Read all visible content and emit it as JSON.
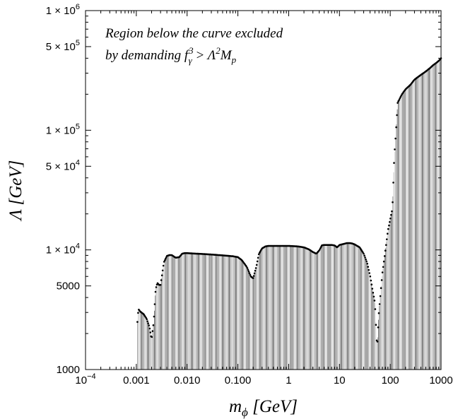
{
  "chart_data": {
    "type": "scatter",
    "xscale": "log",
    "yscale": "log",
    "xlim": [
      0.0001,
      1000
    ],
    "ylim": [
      1000,
      1000000
    ],
    "grid": false,
    "xlabel_main": "m",
    "xlabel_sub": "ϕ",
    "xlabel_unit": " [GeV]",
    "ylabel": "Λ [GeV]",
    "annotation": {
      "line1": "Region below the curve excluded",
      "line2_prefix": "by demanding f",
      "line2_sup1": "3",
      "line2_sub1": "γ",
      "line2_mid": " > Λ",
      "line2_sup2": "2",
      "line2_M": "M",
      "line2_sub2": "p"
    },
    "x_ticks": [
      {
        "value": 0.0001,
        "base": "10",
        "exp": "−4"
      },
      {
        "value": 0.001,
        "label": "0.001"
      },
      {
        "value": 0.01,
        "label": "0.010"
      },
      {
        "value": 0.1,
        "label": "0.100"
      },
      {
        "value": 1,
        "label": "1"
      },
      {
        "value": 10,
        "label": "10"
      },
      {
        "value": 100,
        "label": "100"
      },
      {
        "value": 1000,
        "label": "1000"
      }
    ],
    "y_ticks": [
      {
        "value": 1000,
        "label": "1000"
      },
      {
        "value": 5000,
        "label": "5000"
      },
      {
        "value": 10000,
        "mant": "1 × 10",
        "exp": "4"
      },
      {
        "value": 50000,
        "mant": "5 × 10",
        "exp": "4"
      },
      {
        "value": 100000,
        "mant": "1 × 10",
        "exp": "5"
      },
      {
        "value": 500000,
        "mant": "5 × 10",
        "exp": "5"
      },
      {
        "value": 1000000,
        "mant": "1 × 10",
        "exp": "6"
      }
    ],
    "series": [
      {
        "x": [
          0.00105,
          0.0011,
          0.0012,
          0.0014,
          0.0016,
          0.0018,
          0.002,
          0.0022,
          0.0024,
          0.0026,
          0.0028,
          0.003,
          0.0035,
          0.004,
          0.0045,
          0.005,
          0.0055,
          0.006,
          0.007,
          0.008,
          0.009,
          0.01,
          0.012,
          0.015,
          0.02,
          0.03,
          0.05,
          0.08,
          0.1,
          0.12,
          0.15,
          0.18,
          0.2,
          0.23,
          0.26,
          0.3,
          0.35,
          0.4,
          0.5,
          0.7,
          1,
          1.5,
          2,
          2.5,
          3,
          3.5,
          4,
          4.5,
          5,
          6,
          7,
          8,
          9,
          10,
          12,
          14,
          16,
          18,
          20,
          25,
          30,
          35,
          40,
          45,
          50,
          55,
          60,
          70,
          80,
          90,
          100,
          110,
          120,
          130,
          140,
          150,
          170,
          200,
          250,
          300,
          400,
          500,
          600,
          700,
          800,
          900,
          1000
        ],
        "y": [
          2500,
          3200,
          3050,
          2900,
          2650,
          2300,
          1800,
          2500,
          4700,
          5300,
          5100,
          5100,
          7900,
          8900,
          9050,
          9050,
          8800,
          8600,
          8700,
          9300,
          9400,
          9400,
          9350,
          9300,
          9250,
          9150,
          9000,
          8850,
          8700,
          8200,
          7200,
          6000,
          5800,
          7200,
          9300,
          10300,
          10700,
          10800,
          10800,
          10800,
          10800,
          10700,
          10500,
          10100,
          9600,
          9300,
          9900,
          10900,
          11000,
          11000,
          11000,
          10900,
          10500,
          11000,
          11200,
          11400,
          11400,
          11300,
          11100,
          10500,
          9300,
          7800,
          6100,
          4600,
          3600,
          1500,
          3100,
          6400,
          9800,
          14500,
          18000,
          22000,
          60000,
          100000,
          170000,
          180000,
          200000,
          220000,
          240000,
          265000,
          290000,
          310000,
          330000,
          350000,
          365000,
          380000,
          400000
        ]
      }
    ]
  }
}
